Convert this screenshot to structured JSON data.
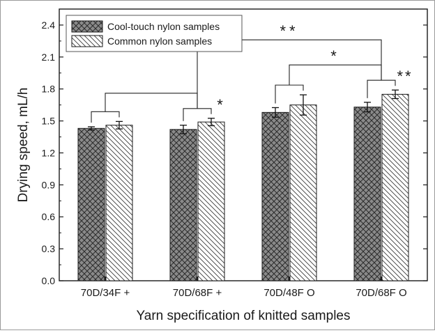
{
  "chart_data": {
    "type": "bar",
    "categories": [
      "70D/34F +",
      "70D/68F +",
      "70D/48F O",
      "70D/68F O"
    ],
    "series": [
      {
        "name": "Cool-touch nylon samples",
        "values": [
          1.43,
          1.42,
          1.58,
          1.63
        ],
        "errors": [
          0.015,
          0.04,
          0.045,
          0.045
        ],
        "pattern": "crosshatch",
        "color": "#8a8a8a"
      },
      {
        "name": "Common nylon samples",
        "values": [
          1.46,
          1.49,
          1.65,
          1.75
        ],
        "errors": [
          0.035,
          0.035,
          0.095,
          0.04
        ],
        "pattern": "diagonal",
        "color": "#ffffff"
      }
    ],
    "xlabel": "Yarn specification of knitted samples",
    "ylabel": "Drying speed, mL/h",
    "ylim": [
      0.0,
      2.55
    ],
    "yticks": [
      "0.0",
      "0.3",
      "0.6",
      "0.9",
      "1.2",
      "1.5",
      "1.8",
      "2.1",
      "2.4"
    ],
    "legend_position": "top-left",
    "grid": false,
    "significance": [
      {
        "label": "",
        "type": "pair",
        "category": 0
      },
      {
        "label": "*",
        "type": "pair",
        "category": 1
      },
      {
        "label": "",
        "type": "pair",
        "category": 2
      },
      {
        "label": "**",
        "type": "pair",
        "category": 3
      },
      {
        "label": "",
        "type": "between",
        "from": 0,
        "to": 1
      },
      {
        "label": "*",
        "type": "between",
        "from": 2,
        "to": 3
      },
      {
        "label": "**",
        "type": "between",
        "from": 1,
        "to": 3
      }
    ]
  }
}
